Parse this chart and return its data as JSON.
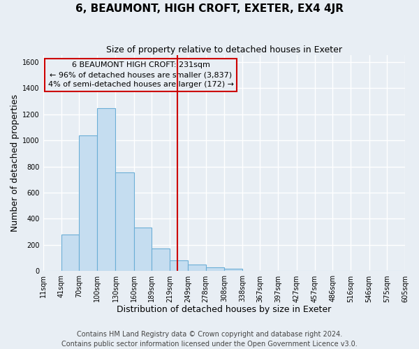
{
  "title": "6, BEAUMONT, HIGH CROFT, EXETER, EX4 4JR",
  "subtitle": "Size of property relative to detached houses in Exeter",
  "xlabel": "Distribution of detached houses by size in Exeter",
  "ylabel": "Number of detached properties",
  "bar_values": [
    0,
    280,
    1035,
    1245,
    755,
    335,
    175,
    80,
    50,
    30,
    20,
    0,
    0,
    0,
    0,
    0,
    0,
    0,
    0,
    0
  ],
  "bin_edges": [
    11,
    41,
    70,
    100,
    130,
    160,
    189,
    219,
    249,
    278,
    308,
    338,
    367,
    397,
    427,
    457,
    486,
    516,
    546,
    575,
    605
  ],
  "tick_labels": [
    "11sqm",
    "41sqm",
    "70sqm",
    "100sqm",
    "130sqm",
    "160sqm",
    "189sqm",
    "219sqm",
    "249sqm",
    "278sqm",
    "308sqm",
    "338sqm",
    "367sqm",
    "397sqm",
    "427sqm",
    "457sqm",
    "486sqm",
    "516sqm",
    "546sqm",
    "575sqm",
    "605sqm"
  ],
  "bar_color": "#c5ddf0",
  "bar_edge_color": "#6baed6",
  "vline_x": 231,
  "vline_color": "#cc0000",
  "annotation_title": "6 BEAUMONT HIGH CROFT: 231sqm",
  "annotation_line1": "← 96% of detached houses are smaller (3,837)",
  "annotation_line2": "4% of semi-detached houses are larger (172) →",
  "annotation_box_color": "#cc0000",
  "ylim": [
    0,
    1650
  ],
  "yticks": [
    0,
    200,
    400,
    600,
    800,
    1000,
    1200,
    1400,
    1600
  ],
  "footer_line1": "Contains HM Land Registry data © Crown copyright and database right 2024.",
  "footer_line2": "Contains public sector information licensed under the Open Government Licence v3.0.",
  "bg_color": "#e8eef4",
  "grid_color": "#ffffff",
  "title_fontsize": 11,
  "subtitle_fontsize": 9,
  "axis_label_fontsize": 9,
  "tick_fontsize": 7,
  "footer_fontsize": 7,
  "annotation_fontsize": 8
}
